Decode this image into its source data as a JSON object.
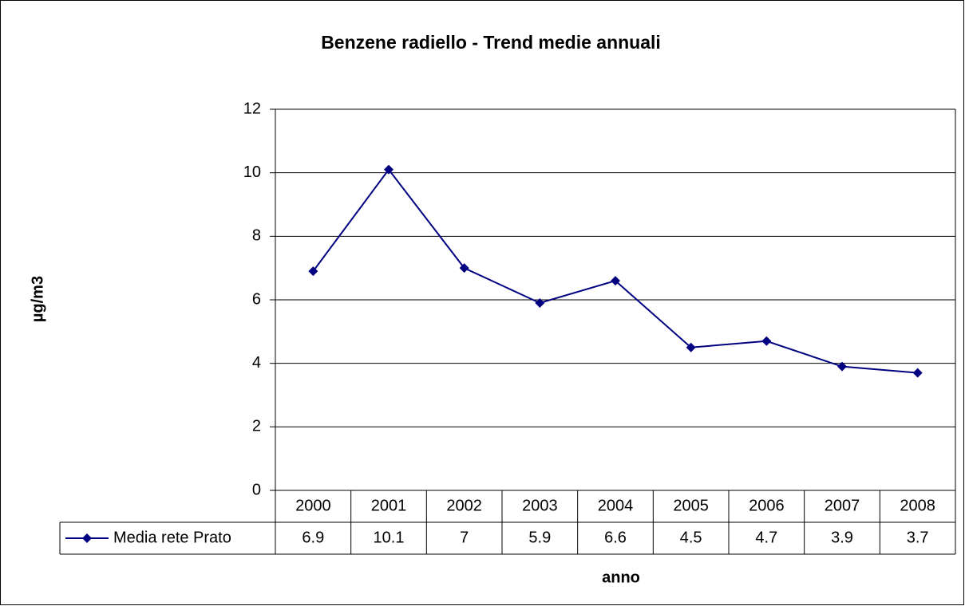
{
  "chart_data": {
    "type": "line",
    "title": "Benzene radiello - Trend medie annuali",
    "x_label": "anno",
    "y_label": "µg/m3",
    "categories": [
      "2000",
      "2001",
      "2002",
      "2003",
      "2004",
      "2005",
      "2006",
      "2007",
      "2008"
    ],
    "series": [
      {
        "name": "Media rete Prato",
        "color": "#000080",
        "values": [
          6.9,
          10.1,
          7,
          5.9,
          6.6,
          4.5,
          4.7,
          3.9,
          3.7
        ]
      }
    ],
    "ylim": [
      0,
      12
    ],
    "yticks": [
      0,
      2,
      4,
      6,
      8,
      10,
      12
    ],
    "grid": true,
    "data_table": true
  }
}
